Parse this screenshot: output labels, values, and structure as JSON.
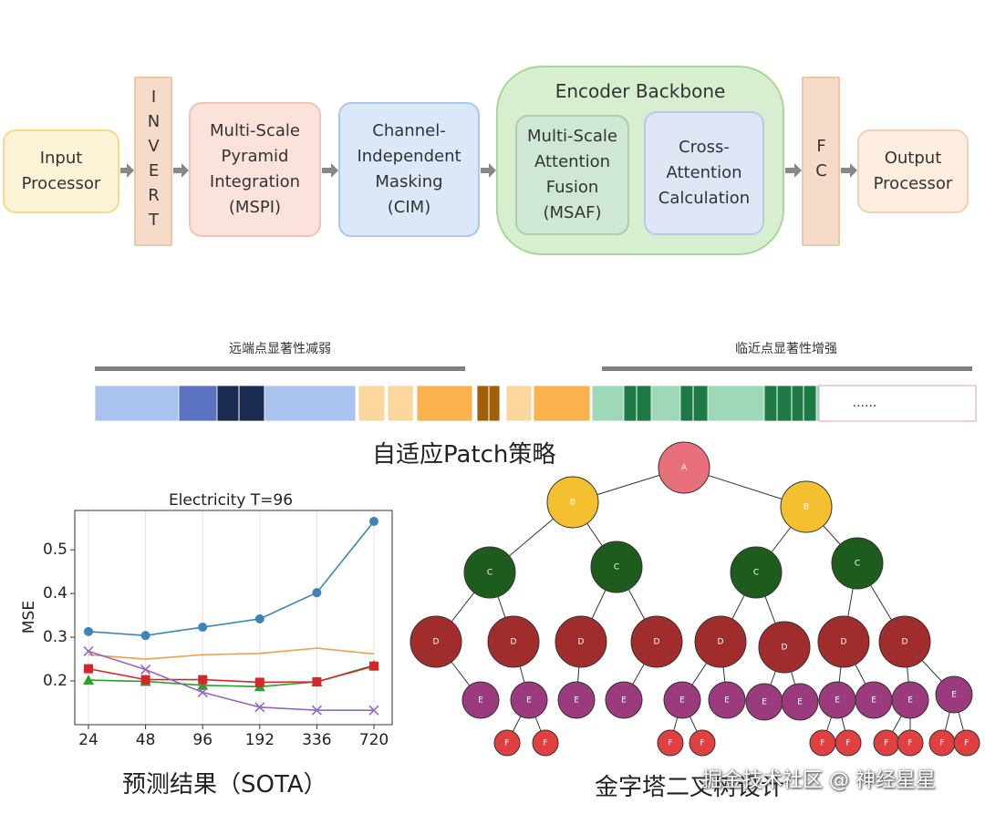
{
  "flow": {
    "input": [
      "Input",
      "Processor"
    ],
    "invert": "INVERT",
    "mspi": [
      "Multi-Scale",
      "Pyramid",
      "Integration",
      "(MSPI)"
    ],
    "cim": [
      "Channel-",
      "Independent",
      "Masking",
      "(CIM)"
    ],
    "encoder": {
      "title": "Encoder Backbone",
      "msaf": [
        "Multi-Scale",
        "Attention",
        "Fusion",
        "(MSAF)"
      ],
      "cross": [
        "Cross-",
        "Attention",
        "Calculation"
      ]
    },
    "fc": "FC",
    "output": [
      "Output",
      "Processor"
    ]
  },
  "patch": {
    "left_label": "远端点显著性减弱",
    "right_label": "临近点显著性增强",
    "ellipsis": "......",
    "caption": "自适应Patch策略"
  },
  "chart_data": {
    "type": "line",
    "title": "Electricity T=96",
    "y_label": "MSE",
    "categories": [
      "24",
      "48",
      "96",
      "192",
      "336",
      "720"
    ],
    "series": [
      {
        "color": "#3d85b8",
        "marker": "o",
        "values": [
          0.313,
          0.304,
          0.323,
          0.342,
          0.402,
          0.565
        ]
      },
      {
        "color": "#f0a050",
        "marker": "none",
        "values": [
          0.26,
          0.25,
          0.26,
          0.263,
          0.275,
          0.262
        ]
      },
      {
        "color": "#2ca02c",
        "marker": "^",
        "values": [
          0.202,
          0.199,
          0.19,
          0.187,
          0.198,
          0.236
        ]
      },
      {
        "color": "#d62728",
        "marker": "s",
        "values": [
          0.228,
          0.203,
          0.203,
          0.197,
          0.198,
          0.234
        ]
      },
      {
        "color": "#9467bd",
        "marker": "x",
        "values": [
          0.268,
          0.226,
          0.174,
          0.14,
          0.133,
          0.133
        ]
      }
    ],
    "ylim": [
      0.1,
      0.59
    ],
    "yticks": [
      0.2,
      0.3,
      0.4,
      0.5
    ],
    "grid": true
  },
  "chart_caption": "预测结果（SOTA）",
  "tree": {
    "nodes": [
      "A",
      "B",
      "B",
      "C",
      "C",
      "C",
      "C",
      "D",
      "D",
      "D",
      "D",
      "D",
      "D",
      "D",
      "D",
      "E",
      "E",
      "E",
      "E",
      "E",
      "E",
      "E",
      "E",
      "E",
      "E",
      "E",
      "E",
      "F",
      "F",
      "F",
      "F",
      "F",
      "F",
      "F",
      "F",
      "F",
      "F"
    ],
    "caption": "金字塔二叉树设计"
  },
  "watermark": "掘金技术社区 @ 神经星星"
}
